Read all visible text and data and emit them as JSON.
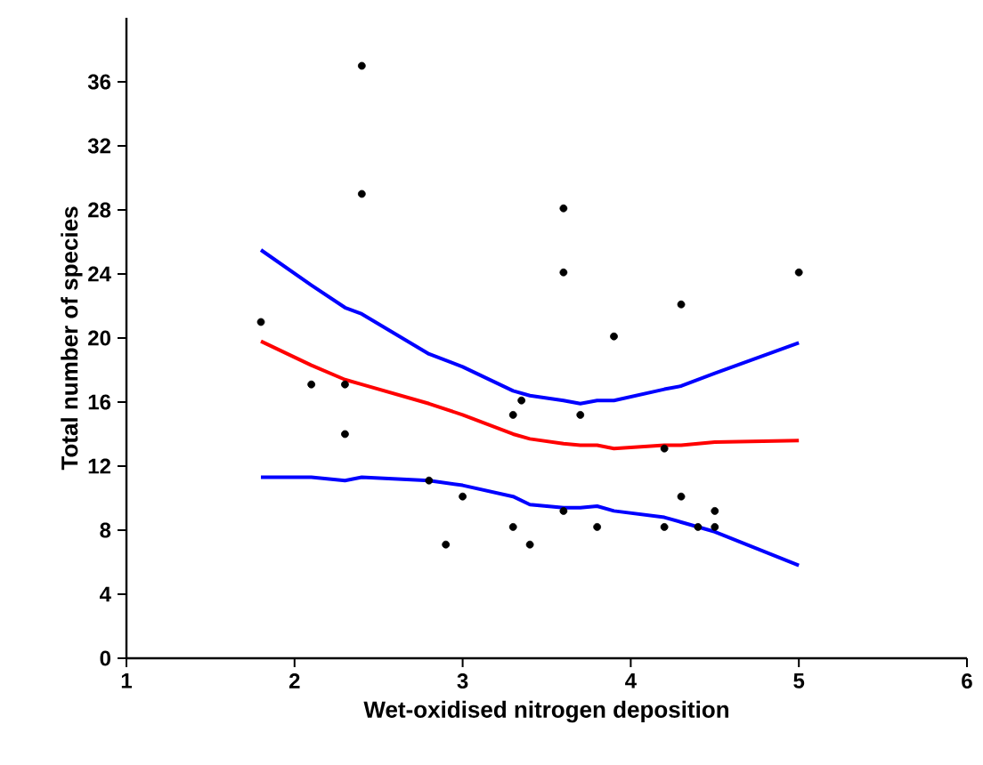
{
  "chart_data": {
    "type": "scatter",
    "xlabel": "Wet-oxidised nitrogen deposition",
    "ylabel": "Total number of species",
    "xlim": [
      1,
      6
    ],
    "xticks": [
      1,
      2,
      3,
      4,
      5,
      6
    ],
    "ylim": [
      0,
      40
    ],
    "yticks": [
      0,
      4,
      8,
      12,
      16,
      20,
      24,
      28,
      32,
      36
    ],
    "grid": false,
    "series": [
      {
        "marker": "circle",
        "color": "#000000",
        "x": [
          1.8,
          2.1,
          2.3,
          2.3,
          2.4,
          2.4,
          2.8,
          2.9,
          3.0,
          3.3,
          3.3,
          3.35,
          3.4,
          3.6,
          3.6,
          3.6,
          3.7,
          3.8,
          3.9,
          4.2,
          4.2,
          4.3,
          4.3,
          4.4,
          4.5,
          4.5,
          5.0
        ],
        "values": [
          21,
          17.1,
          17.1,
          14,
          37,
          29,
          11.1,
          7.1,
          10.1,
          8.2,
          15.2,
          16.1,
          7.1,
          28.1,
          24.1,
          9.2,
          15.2,
          8.2,
          20.1,
          13.1,
          8.2,
          22.1,
          10.1,
          8.2,
          9.2,
          8.2,
          24.1
        ]
      },
      {
        "type": "line",
        "marker": "none",
        "color": "#ff0000",
        "x": [
          1.8,
          2.1,
          2.3,
          2.4,
          2.8,
          3.0,
          3.3,
          3.4,
          3.6,
          3.7,
          3.8,
          3.9,
          4.2,
          4.3,
          4.5,
          5.0
        ],
        "values": [
          19.8,
          18.3,
          17.4,
          17.1,
          15.9,
          15.2,
          14.0,
          13.7,
          13.4,
          13.3,
          13.3,
          13.1,
          13.3,
          13.3,
          13.5,
          13.6
        ]
      },
      {
        "type": "line",
        "marker": "none",
        "color": "#0000ff",
        "x": [
          1.8,
          2.1,
          2.3,
          2.4,
          2.8,
          3.0,
          3.3,
          3.4,
          3.6,
          3.7,
          3.8,
          3.9,
          4.2,
          4.3,
          4.5,
          5.0
        ],
        "values": [
          25.5,
          23.3,
          21.9,
          21.5,
          19.0,
          18.2,
          16.7,
          16.4,
          16.1,
          15.9,
          16.1,
          16.1,
          16.8,
          17.0,
          17.8,
          19.7
        ]
      },
      {
        "type": "line",
        "marker": "none",
        "color": "#0000ff",
        "x": [
          1.8,
          2.1,
          2.3,
          2.4,
          2.8,
          3.0,
          3.3,
          3.4,
          3.6,
          3.7,
          3.8,
          3.9,
          4.2,
          4.3,
          4.5,
          5.0
        ],
        "values": [
          11.3,
          11.3,
          11.1,
          11.3,
          11.1,
          10.8,
          10.1,
          9.6,
          9.4,
          9.4,
          9.5,
          9.2,
          8.8,
          8.5,
          7.9,
          5.8
        ]
      }
    ]
  }
}
